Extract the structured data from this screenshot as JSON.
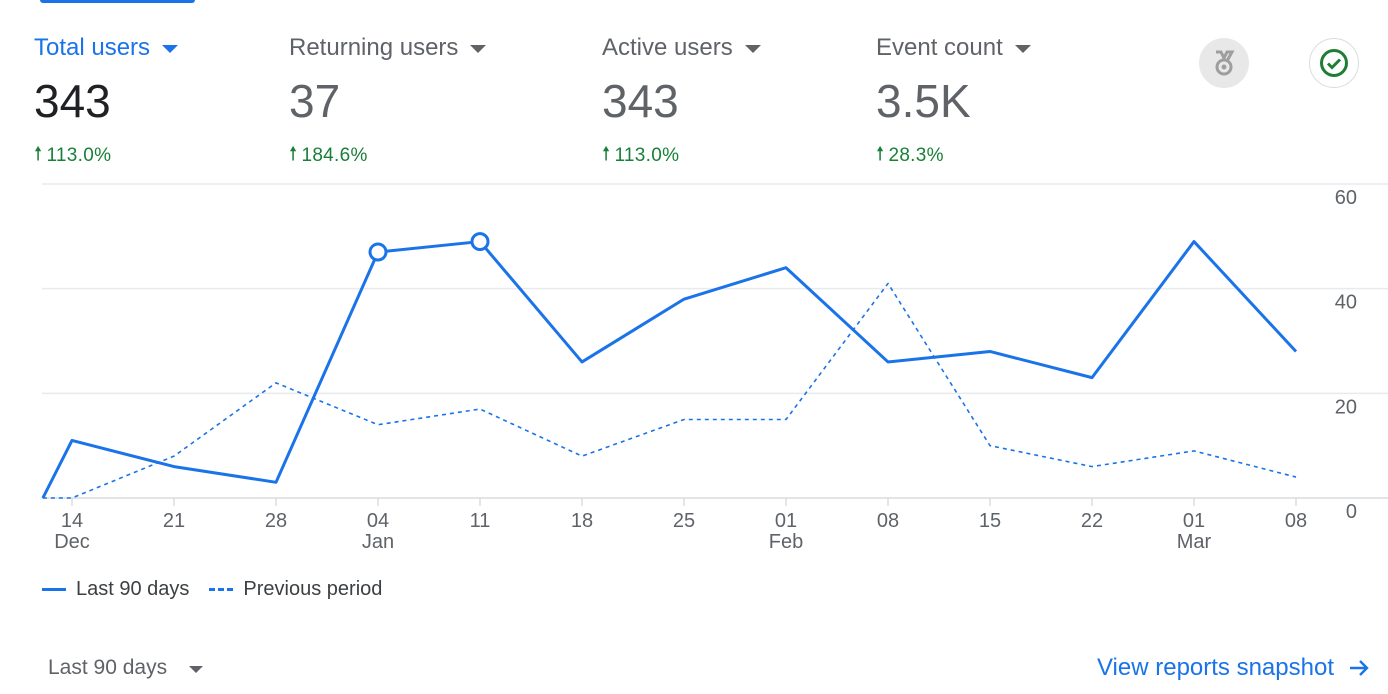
{
  "metrics": [
    {
      "label": "Total users",
      "value": "343",
      "change": "113.0%",
      "active": true
    },
    {
      "label": "Returning users",
      "value": "37",
      "change": "184.6%",
      "active": false
    },
    {
      "label": "Active users",
      "value": "343",
      "change": "113.0%",
      "active": false
    },
    {
      "label": "Event count",
      "value": "3.5K",
      "change": "28.3%",
      "active": false
    }
  ],
  "icons": {
    "insights": "medal-icon",
    "status": "check-circle-icon",
    "trend": "arrow-up-icon"
  },
  "colors": {
    "accent": "#1a73e8",
    "positive": "#188038",
    "status_ok": "#1e7e34"
  },
  "chart_data": {
    "type": "line",
    "x": [
      "12 Dec",
      "14 Dec",
      "21 Dec",
      "28 Dec",
      "04 Jan",
      "11 Jan",
      "18 Jan",
      "25 Jan",
      "01 Feb",
      "08 Feb",
      "15 Feb",
      "22 Feb",
      "01 Mar",
      "08 Mar"
    ],
    "series": [
      {
        "name": "Last 90 days",
        "style": "solid",
        "values": [
          0,
          11,
          6,
          3,
          47,
          49,
          26,
          38,
          44,
          26,
          28,
          23,
          49,
          28
        ],
        "highlighted_points": [
          "04 Jan",
          "11 Jan"
        ]
      },
      {
        "name": "Previous period",
        "style": "dashed",
        "values": [
          0,
          0,
          8,
          22,
          14,
          17,
          8,
          15,
          15,
          41,
          10,
          6,
          9,
          4
        ]
      }
    ],
    "x_ticks": [
      {
        "day": "14",
        "month": "Dec"
      },
      {
        "day": "21",
        "month": ""
      },
      {
        "day": "28",
        "month": ""
      },
      {
        "day": "04",
        "month": "Jan"
      },
      {
        "day": "11",
        "month": ""
      },
      {
        "day": "18",
        "month": ""
      },
      {
        "day": "25",
        "month": ""
      },
      {
        "day": "01",
        "month": "Feb"
      },
      {
        "day": "08",
        "month": ""
      },
      {
        "day": "15",
        "month": ""
      },
      {
        "day": "22",
        "month": ""
      },
      {
        "day": "01",
        "month": "Mar"
      },
      {
        "day": "08",
        "month": ""
      }
    ],
    "y_ticks": [
      "0",
      "20",
      "40",
      "60"
    ],
    "ylim": [
      0,
      60
    ],
    "y_axis_side": "right",
    "grid": true,
    "legend_position": "bottom-left"
  },
  "footer": {
    "range_label": "Last 90 days",
    "snapshot_link": "View reports snapshot"
  }
}
